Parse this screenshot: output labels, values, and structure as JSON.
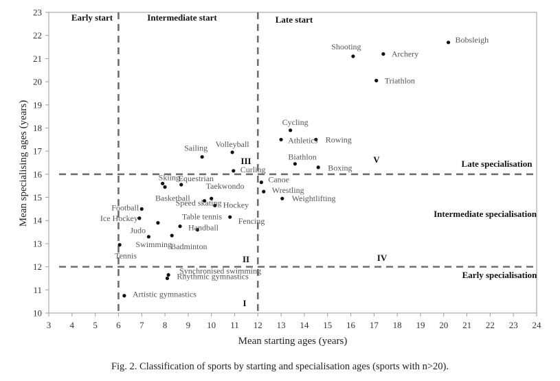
{
  "caption": "Fig. 2. Classification of sports by starting and specialisation ages (sports with n>20).",
  "chart_data": {
    "type": "scatter",
    "title": "",
    "xlabel": "Mean starting ages (years)",
    "ylabel": "Mean specialising ages (years)",
    "xlim": [
      3,
      24
    ],
    "ylim": [
      10,
      23
    ],
    "xticks": [
      "3",
      "4",
      "5",
      "6",
      "7",
      "8",
      "9",
      "10",
      "11",
      "12",
      "13",
      "14",
      "15",
      "16",
      "17",
      "18",
      "19",
      "20",
      "21",
      "22",
      "23",
      "24"
    ],
    "yticks": [
      "10",
      "11",
      "12",
      "13",
      "14",
      "15",
      "16",
      "17",
      "18",
      "19",
      "20",
      "21",
      "22",
      "23"
    ],
    "grid": false,
    "vertical_thresholds": [
      6,
      12
    ],
    "horizontal_thresholds": [
      12,
      16
    ],
    "region_labels": {
      "early_start": "Early start",
      "intermediate_start": "Intermediate start",
      "late_start": "Late start",
      "late_specialisation": "Late specialisation",
      "intermediate_specialisation": "Intermediate specialisation",
      "early_specialisation": "Early specialisation"
    },
    "roman_labels": [
      "I",
      "II",
      "III",
      "IV",
      "V"
    ],
    "points": [
      {
        "name": "Bobsleigh",
        "x": 20.2,
        "y": 21.7
      },
      {
        "name": "Shooting",
        "x": 16.1,
        "y": 21.1
      },
      {
        "name": "Archery",
        "x": 17.4,
        "y": 21.2
      },
      {
        "name": "Triathlon",
        "x": 17.1,
        "y": 20.05
      },
      {
        "name": "Cycling",
        "x": 13.4,
        "y": 17.9
      },
      {
        "name": "Athletics",
        "x": 13.0,
        "y": 17.5
      },
      {
        "name": "Rowing",
        "x": 14.5,
        "y": 17.5
      },
      {
        "name": "Biathlon",
        "x": 13.6,
        "y": 16.45
      },
      {
        "name": "Boxing",
        "x": 14.6,
        "y": 16.3
      },
      {
        "name": "Sailing",
        "x": 9.6,
        "y": 16.75
      },
      {
        "name": "Volleyball",
        "x": 10.9,
        "y": 16.95
      },
      {
        "name": "Curling",
        "x": 10.95,
        "y": 16.15
      },
      {
        "name": "Skiing",
        "x": 7.9,
        "y": 15.6
      },
      {
        "name": "Equestrian",
        "x": 8.7,
        "y": 15.55
      },
      {
        "name": "Taekwondo",
        "x": 10.0,
        "y": 14.95
      },
      {
        "name": "Basketball",
        "x": 8.0,
        "y": 15.45
      },
      {
        "name": "Speed skating",
        "x": 9.7,
        "y": 14.85
      },
      {
        "name": "Hockey",
        "x": 10.15,
        "y": 14.65
      },
      {
        "name": "Football",
        "x": 7.0,
        "y": 14.5
      },
      {
        "name": "Ice Hockey",
        "x": 6.9,
        "y": 14.1
      },
      {
        "name": "Fencing",
        "x": 10.8,
        "y": 14.15
      },
      {
        "name": "Table tennis",
        "x": 7.7,
        "y": 13.9
      },
      {
        "name": "Handball",
        "x": 8.65,
        "y": 13.75
      },
      {
        "name": "Judo",
        "x": 9.4,
        "y": 13.6
      },
      {
        "name": "Badminton",
        "x": 8.3,
        "y": 13.35
      },
      {
        "name": "Swimming",
        "x": 7.3,
        "y": 13.3
      },
      {
        "name": "Tennis",
        "x": 6.05,
        "y": 12.95
      },
      {
        "name": "Canoe",
        "x": 12.15,
        "y": 15.65
      },
      {
        "name": "Wrestling",
        "x": 12.25,
        "y": 15.25
      },
      {
        "name": "Weightlifting",
        "x": 13.05,
        "y": 14.95
      },
      {
        "name": "Synchronised swimming",
        "x": 8.15,
        "y": 11.65
      },
      {
        "name": "Rhythmic gymnastics",
        "x": 8.1,
        "y": 11.5
      },
      {
        "name": "Artistic gymnastics",
        "x": 6.25,
        "y": 10.75
      }
    ]
  }
}
